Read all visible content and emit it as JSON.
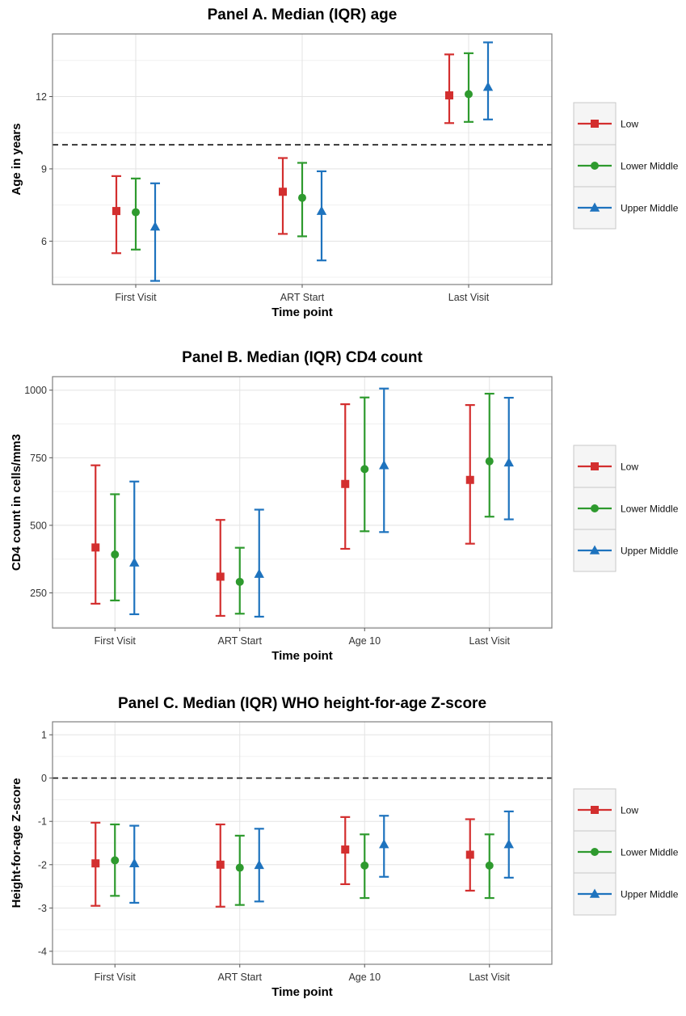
{
  "chart_data": [
    {
      "type": "errorbar",
      "title": "Panel A. Median (IQR) age",
      "xlabel": "Time point",
      "ylabel": "Age in years",
      "ylim": [
        4.2,
        14.6
      ],
      "yticks": [
        6,
        9,
        12
      ],
      "categories": [
        "First Visit",
        "ART Start",
        "Last Visit"
      ],
      "reference_line": 10,
      "legend_position": "right",
      "series": [
        {
          "name": "Low",
          "color": "#d32f2f",
          "marker": "square",
          "median": [
            7.25,
            8.05,
            12.05
          ],
          "lower": [
            5.5,
            6.3,
            10.9
          ],
          "upper": [
            8.7,
            9.45,
            13.75
          ]
        },
        {
          "name": "Lower Middle",
          "color": "#2e9a2e",
          "marker": "circle",
          "median": [
            7.2,
            7.8,
            12.1
          ],
          "lower": [
            5.65,
            6.2,
            10.95
          ],
          "upper": [
            8.6,
            9.25,
            13.8
          ]
        },
        {
          "name": "Upper Middle",
          "color": "#1e73be",
          "marker": "triangle",
          "median": [
            6.6,
            7.25,
            12.4
          ],
          "lower": [
            4.35,
            5.2,
            11.05
          ],
          "upper": [
            8.4,
            8.9,
            14.25
          ]
        }
      ]
    },
    {
      "type": "errorbar",
      "title": "Panel B. Median (IQR) CD4 count",
      "xlabel": "Time point",
      "ylabel": "CD4 count in cells/mm3",
      "ylim": [
        120,
        1050
      ],
      "yticks": [
        250,
        500,
        750,
        1000
      ],
      "categories": [
        "First Visit",
        "ART Start",
        "Age 10",
        "Last Visit"
      ],
      "legend_position": "right",
      "series": [
        {
          "name": "Low",
          "color": "#d32f2f",
          "marker": "square",
          "median": [
            418,
            310,
            653,
            668
          ],
          "lower": [
            210,
            165,
            413,
            432
          ],
          "upper": [
            722,
            520,
            948,
            945
          ]
        },
        {
          "name": "Lower Middle",
          "color": "#2e9a2e",
          "marker": "circle",
          "median": [
            392,
            291,
            708,
            737
          ],
          "lower": [
            222,
            173,
            478,
            532
          ],
          "upper": [
            615,
            417,
            973,
            987
          ]
        },
        {
          "name": "Upper Middle",
          "color": "#1e73be",
          "marker": "triangle",
          "median": [
            362,
            320,
            722,
            732
          ],
          "lower": [
            171,
            162,
            475,
            522
          ],
          "upper": [
            662,
            558,
            1006,
            972
          ]
        }
      ]
    },
    {
      "type": "errorbar",
      "title": "Panel C. Median (IQR) WHO height-for-age Z-score",
      "xlabel": "Time point",
      "ylabel": "Height-for-age Z-score",
      "ylim": [
        -4.3,
        1.3
      ],
      "yticks": [
        -4,
        -3,
        -2,
        -1,
        0,
        1
      ],
      "categories": [
        "First Visit",
        "ART Start",
        "Age 10",
        "Last Visit"
      ],
      "reference_line": 0,
      "legend_position": "right",
      "series": [
        {
          "name": "Low",
          "color": "#d32f2f",
          "marker": "square",
          "median": [
            -1.97,
            -2.0,
            -1.65,
            -1.77
          ],
          "lower": [
            -2.95,
            -2.97,
            -2.45,
            -2.6
          ],
          "upper": [
            -1.03,
            -1.07,
            -0.9,
            -0.95
          ]
        },
        {
          "name": "Lower Middle",
          "color": "#2e9a2e",
          "marker": "circle",
          "median": [
            -1.9,
            -2.07,
            -2.02,
            -2.02
          ],
          "lower": [
            -2.72,
            -2.93,
            -2.77,
            -2.77
          ],
          "upper": [
            -1.07,
            -1.33,
            -1.3,
            -1.3
          ]
        },
        {
          "name": "Upper Middle",
          "color": "#1e73be",
          "marker": "triangle",
          "median": [
            -1.97,
            -2.01,
            -1.53,
            -1.53
          ],
          "lower": [
            -2.88,
            -2.85,
            -2.28,
            -2.3
          ],
          "upper": [
            -1.1,
            -1.17,
            -0.87,
            -0.77
          ]
        }
      ]
    }
  ]
}
